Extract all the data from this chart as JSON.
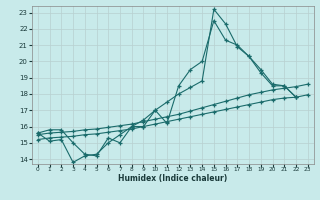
{
  "title": "",
  "xlabel": "Humidex (Indice chaleur)",
  "bg_color": "#c8eaea",
  "grid_color": "#b8d0d0",
  "line_color": "#1a6b6b",
  "xlim": [
    -0.5,
    23.5
  ],
  "ylim": [
    13.7,
    23.4
  ],
  "xticks": [
    0,
    1,
    2,
    3,
    4,
    5,
    6,
    7,
    8,
    9,
    10,
    11,
    12,
    13,
    14,
    15,
    16,
    17,
    18,
    19,
    20,
    21,
    22,
    23
  ],
  "yticks": [
    14,
    15,
    16,
    17,
    18,
    19,
    20,
    21,
    22,
    23
  ],
  "line1_y": [
    15.6,
    15.8,
    15.8,
    15.0,
    14.3,
    14.2,
    15.3,
    15.0,
    16.0,
    16.0,
    17.0,
    16.2,
    18.5,
    19.5,
    20.0,
    22.5,
    21.3,
    21.0,
    20.3,
    19.3,
    18.5,
    18.5,
    17.8,
    null
  ],
  "line2_y": [
    15.5,
    15.6,
    15.65,
    15.7,
    15.8,
    15.85,
    15.95,
    16.05,
    16.15,
    16.3,
    16.45,
    16.6,
    16.75,
    16.95,
    17.15,
    17.35,
    17.55,
    17.75,
    17.95,
    18.1,
    18.25,
    18.35,
    18.45,
    18.6
  ],
  "line3_y": [
    15.2,
    15.3,
    15.35,
    15.4,
    15.5,
    15.55,
    15.65,
    15.75,
    15.85,
    16.0,
    16.15,
    16.3,
    16.45,
    16.6,
    16.75,
    16.9,
    17.05,
    17.2,
    17.35,
    17.5,
    17.65,
    17.75,
    17.8,
    17.95
  ],
  "line4_y": [
    15.6,
    15.1,
    15.2,
    13.8,
    14.2,
    14.3,
    15.0,
    15.5,
    16.0,
    16.4,
    17.0,
    17.5,
    18.0,
    18.4,
    18.8,
    23.2,
    22.3,
    20.9,
    20.3,
    19.5,
    18.6,
    18.5,
    17.8,
    null
  ]
}
